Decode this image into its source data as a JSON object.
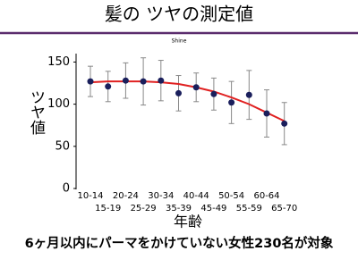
{
  "header": {
    "title": "髪の ツヤの測定値"
  },
  "chart_data": {
    "type": "errorbar",
    "title": "Shine",
    "ylabel": "ツヤ値",
    "xlabel": "年齢",
    "categories": [
      "10-14",
      "15-19",
      "20-24",
      "25-29",
      "30-34",
      "35-39",
      "40-44",
      "45-49",
      "50-54",
      "55-59",
      "60-64",
      "65-70"
    ],
    "values": [
      127,
      121,
      128,
      127,
      128,
      113,
      120,
      112,
      102,
      111,
      89,
      77
    ],
    "errors": [
      18,
      18,
      21,
      28,
      24,
      21,
      17,
      19,
      25,
      29,
      28,
      25
    ],
    "color": "#1a1f5c",
    "error_color": "#888888",
    "trend": {
      "color": "#e02020",
      "values": [
        126,
        127,
        127,
        127,
        126,
        124,
        120,
        115,
        108,
        100,
        90,
        80
      ]
    },
    "ylim": [
      0,
      160
    ],
    "yticks": [
      0,
      50,
      100,
      150
    ]
  },
  "footnote": "6ヶ月以内にパーマをかけていない女性230名が対象"
}
